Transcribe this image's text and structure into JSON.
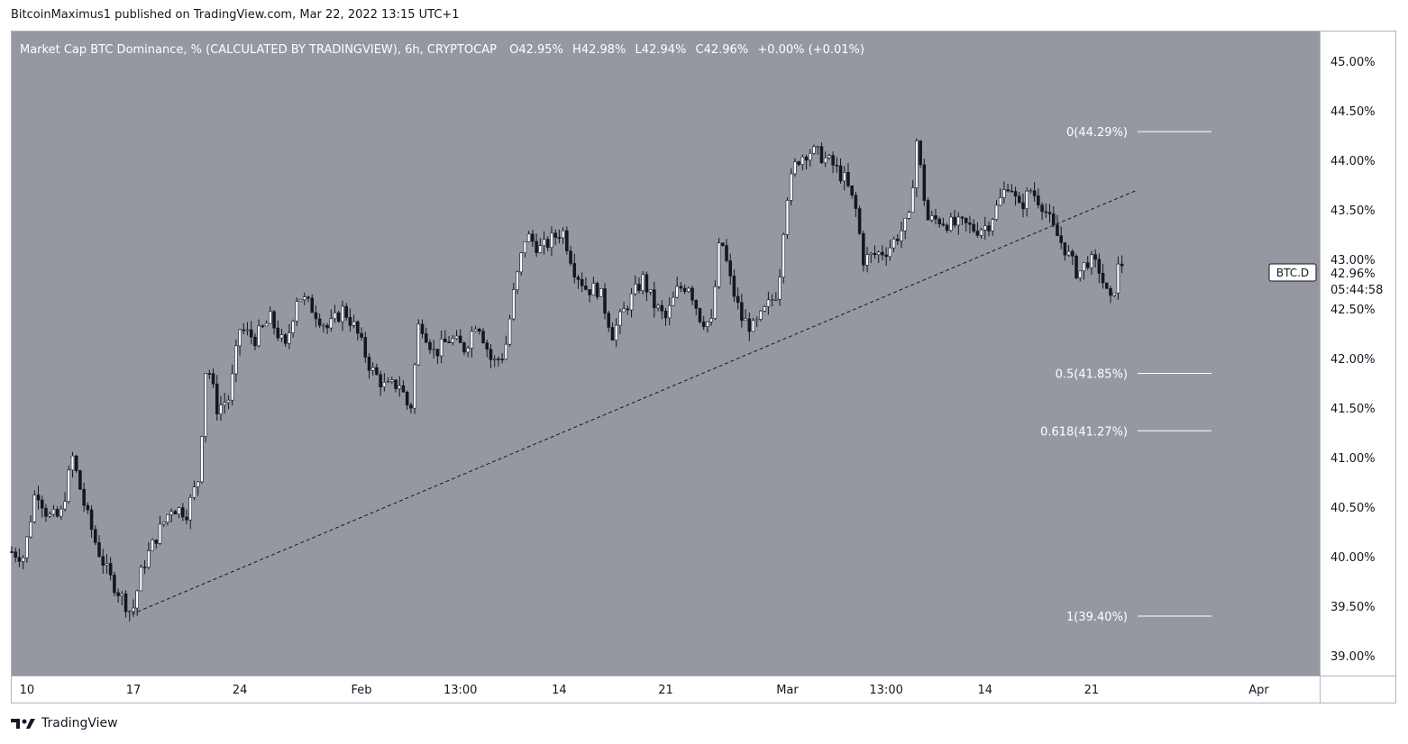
{
  "header": {
    "publisher": "BitcoinMaximus1 published on TradingView.com, Mar 22, 2022 13:15 UTC+1"
  },
  "legend": {
    "symbol_desc": "Market Cap BTC Dominance, % (CALCULATED BY TRADINGVIEW), 6h, CRYPTOCAP",
    "o_label": "O",
    "o_value": "42.95%",
    "h_label": "H",
    "h_value": "42.98%",
    "l_label": "L",
    "l_value": "42.94%",
    "c_label": "C",
    "c_value": "42.96%",
    "change": "+0.00% (+0.01%)"
  },
  "price_badge": {
    "symbol": "BTC.D",
    "price": "42.96%",
    "countdown": "05:44:58"
  },
  "footer": {
    "brand": "TradingView"
  },
  "colors": {
    "plot_bg": "#9598a1",
    "candle": "#ffffff",
    "wick": "#131722",
    "axis_text": "#131722"
  },
  "chart_data": {
    "type": "candlestick",
    "title": "Market Cap BTC Dominance, % (CALCULATED BY TRADINGVIEW), 6h, CRYPTOCAP",
    "interval": "6h",
    "ylim": [
      38.8,
      45.3
    ],
    "y_ticks": [
      "45.00%",
      "44.50%",
      "44.00%",
      "43.50%",
      "43.00%",
      "42.50%",
      "42.00%",
      "41.50%",
      "41.00%",
      "40.50%",
      "40.00%",
      "39.50%",
      "39.00%"
    ],
    "y_tick_values": [
      45.0,
      44.5,
      44.0,
      43.5,
      43.0,
      42.5,
      42.0,
      41.5,
      41.0,
      40.5,
      40.0,
      39.5,
      39.0
    ],
    "x_ticks": [
      {
        "label": "10",
        "day": 10
      },
      {
        "label": "17",
        "day": 17
      },
      {
        "label": "24",
        "day": 24
      },
      {
        "label": "Feb",
        "day": 32
      },
      {
        "label": "13:00",
        "day": 38.5
      },
      {
        "label": "14",
        "day": 45
      },
      {
        "label": "21",
        "day": 52
      },
      {
        "label": "Mar",
        "day": 60
      },
      {
        "label": "13:00",
        "day": 66.5
      },
      {
        "label": "14",
        "day": 73
      },
      {
        "label": "21",
        "day": 80
      },
      {
        "label": "Apr",
        "day": 91
      }
    ],
    "xlim_day": [
      9.0,
      95.0
    ],
    "close_path": [
      [
        9.0,
        40.05
      ],
      [
        9.8,
        40.0
      ],
      [
        10.6,
        40.7
      ],
      [
        11.4,
        40.4
      ],
      [
        12.2,
        40.4
      ],
      [
        13.0,
        41.0
      ],
      [
        13.8,
        40.5
      ],
      [
        14.6,
        40.1
      ],
      [
        15.4,
        39.8
      ],
      [
        16.2,
        39.6
      ],
      [
        16.9,
        39.42
      ],
      [
        17.6,
        39.9
      ],
      [
        18.5,
        40.2
      ],
      [
        19.5,
        40.5
      ],
      [
        20.5,
        40.45
      ],
      [
        21.3,
        40.8
      ],
      [
        21.8,
        42.0
      ],
      [
        22.5,
        41.5
      ],
      [
        23.3,
        41.6
      ],
      [
        24.0,
        42.3
      ],
      [
        25.0,
        42.2
      ],
      [
        26.0,
        42.4
      ],
      [
        27.0,
        42.1
      ],
      [
        27.8,
        42.65
      ],
      [
        28.8,
        42.5
      ],
      [
        29.8,
        42.3
      ],
      [
        30.8,
        42.5
      ],
      [
        31.6,
        42.3
      ],
      [
        32.6,
        41.9
      ],
      [
        33.6,
        41.7
      ],
      [
        34.5,
        41.75
      ],
      [
        35.2,
        41.45
      ],
      [
        35.8,
        42.4
      ],
      [
        36.8,
        42.05
      ],
      [
        37.8,
        42.2
      ],
      [
        38.8,
        42.1
      ],
      [
        39.6,
        42.4
      ],
      [
        40.6,
        41.95
      ],
      [
        41.4,
        42.05
      ],
      [
        42.0,
        42.65
      ],
      [
        42.8,
        43.25
      ],
      [
        43.8,
        43.1
      ],
      [
        44.5,
        43.2
      ],
      [
        45.2,
        43.3
      ],
      [
        46.0,
        42.9
      ],
      [
        46.8,
        42.7
      ],
      [
        47.6,
        42.7
      ],
      [
        48.5,
        42.25
      ],
      [
        49.5,
        42.55
      ],
      [
        50.5,
        42.8
      ],
      [
        51.2,
        42.55
      ],
      [
        52.0,
        42.4
      ],
      [
        52.8,
        42.7
      ],
      [
        53.5,
        42.75
      ],
      [
        54.3,
        42.4
      ],
      [
        55.0,
        42.35
      ],
      [
        55.6,
        43.25
      ],
      [
        56.3,
        42.75
      ],
      [
        57.0,
        42.4
      ],
      [
        57.8,
        42.3
      ],
      [
        58.6,
        42.5
      ],
      [
        59.4,
        42.7
      ],
      [
        59.9,
        43.6
      ],
      [
        60.6,
        44.0
      ],
      [
        61.4,
        44.1
      ],
      [
        62.2,
        44.05
      ],
      [
        63.0,
        43.95
      ],
      [
        63.8,
        43.8
      ],
      [
        64.5,
        43.5
      ],
      [
        65.0,
        43.0
      ],
      [
        65.8,
        43.05
      ],
      [
        66.6,
        43.1
      ],
      [
        67.3,
        43.25
      ],
      [
        68.0,
        43.4
      ],
      [
        68.5,
        44.2
      ],
      [
        69.2,
        43.4
      ],
      [
        70.0,
        43.4
      ],
      [
        70.8,
        43.35
      ],
      [
        71.6,
        43.35
      ],
      [
        72.4,
        43.3
      ],
      [
        73.2,
        43.35
      ],
      [
        74.0,
        43.6
      ],
      [
        74.6,
        43.8
      ],
      [
        75.2,
        43.5
      ],
      [
        76.0,
        43.7
      ],
      [
        76.8,
        43.55
      ],
      [
        77.5,
        43.3
      ],
      [
        78.3,
        43.1
      ],
      [
        79.1,
        42.85
      ],
      [
        79.8,
        43.0
      ],
      [
        80.5,
        42.9
      ],
      [
        81.0,
        42.65
      ],
      [
        81.3,
        42.55
      ],
      [
        81.7,
        42.9
      ],
      [
        82.0,
        42.96
      ]
    ],
    "fib_levels": [
      {
        "label": "0(44.29%)",
        "value": 44.29
      },
      {
        "label": "0.5(41.85%)",
        "value": 41.85
      },
      {
        "label": "0.618(41.27%)",
        "value": 41.27
      },
      {
        "label": "1(39.40%)",
        "value": 39.4
      }
    ],
    "trendline": {
      "start": [
        16.9,
        39.42
      ],
      "end": [
        83.0,
        43.7
      ],
      "style": "dashed"
    },
    "grid": false
  }
}
